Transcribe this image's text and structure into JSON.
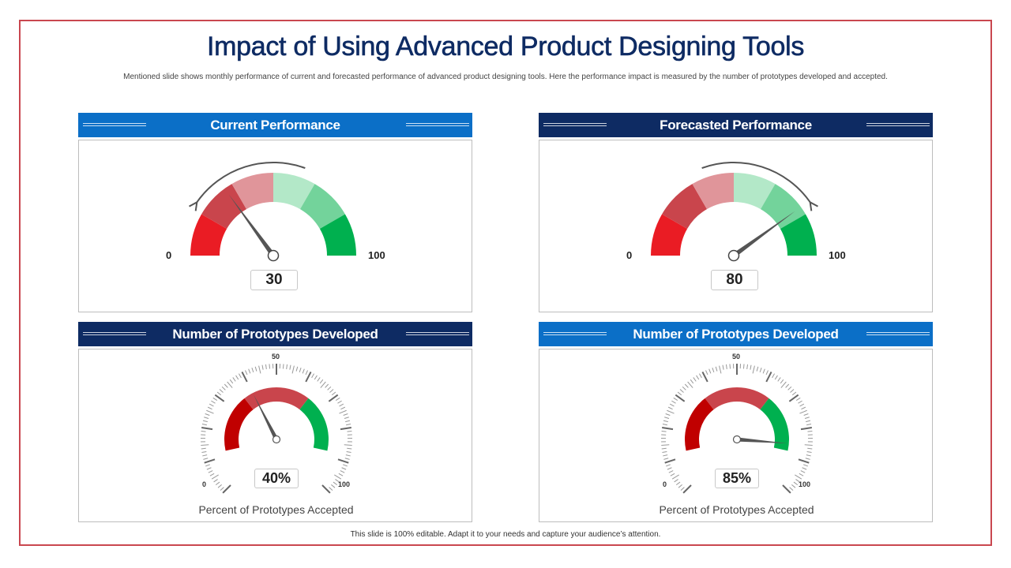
{
  "title": "Impact of Using Advanced Product Designing Tools",
  "subtitle": "Mentioned slide shows monthly performance of current and forecasted performance of advanced product designing tools. Here the performance impact is measured by the number of prototypes developed and accepted.",
  "footer": "This slide is 100% editable.  Adapt it to your needs and capture your audience’s attention.",
  "colors": {
    "title": "#0e2b63",
    "header_light": "#0b6fc7",
    "header_dark": "#0e2b63",
    "red_dark": "#c00000",
    "red": "#ea1c24",
    "red_mid": "#c9454c",
    "red_light": "#e0959a",
    "green_light": "#b3e8c8",
    "green_mid": "#73d39b",
    "green": "#00b04f"
  },
  "panels": {
    "current": {
      "header": "Current Performance",
      "min_label": "0",
      "max_label": "100",
      "value_label": "30"
    },
    "forecast": {
      "header": "Forecasted Performance",
      "min_label": "0",
      "max_label": "100",
      "value_label": "80"
    },
    "proto_left": {
      "header": "Number of Prototypes Developed",
      "min_label": "0",
      "mid_label": "50",
      "max_label": "100",
      "value_label": "40%",
      "caption": "Percent of Prototypes Accepted"
    },
    "proto_right": {
      "header": "Number of Prototypes Developed",
      "min_label": "0",
      "mid_label": "50",
      "max_label": "100",
      "value_label": "85%",
      "caption": "Percent of Prototypes Accepted"
    }
  },
  "chart_data": [
    {
      "type": "gauge",
      "title": "Current Performance",
      "min": 0,
      "max": 100,
      "value": 30,
      "trend": "down"
    },
    {
      "type": "gauge",
      "title": "Forecasted Performance",
      "min": 0,
      "max": 100,
      "value": 80,
      "trend": "up"
    },
    {
      "type": "gauge",
      "title": "Number of Prototypes Developed",
      "min": 0,
      "max": 100,
      "value": 40,
      "unit": "%",
      "caption": "Percent of Prototypes Accepted"
    },
    {
      "type": "gauge",
      "title": "Number of Prototypes Developed",
      "min": 0,
      "max": 100,
      "value": 85,
      "unit": "%",
      "caption": "Percent of Prototypes Accepted"
    }
  ]
}
